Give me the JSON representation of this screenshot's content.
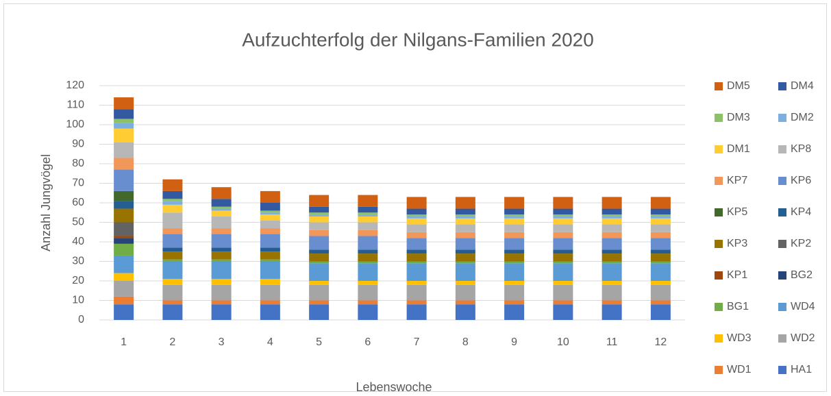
{
  "chart_data": {
    "type": "stacked_bar",
    "title": "Aufzuchterfolg der Nilgans-Familien 2020",
    "x_label": "Lebenswoche",
    "y_label": "Anzahl Jungvögel",
    "categories": [
      "1",
      "2",
      "3",
      "4",
      "5",
      "6",
      "7",
      "8",
      "9",
      "10",
      "11",
      "12"
    ],
    "ylim": [
      0,
      120
    ],
    "yticks": [
      0,
      10,
      20,
      30,
      40,
      50,
      60,
      70,
      80,
      90,
      100,
      110,
      120
    ],
    "grid": true,
    "legend": "right",
    "series": [
      {
        "name": "HA1",
        "color": "#4472C4",
        "values": [
          8,
          8,
          8,
          8,
          8,
          8,
          8,
          8,
          8,
          8,
          8,
          8
        ]
      },
      {
        "name": "WD1",
        "color": "#ED7D31",
        "values": [
          4,
          2,
          2,
          2,
          2,
          2,
          2,
          2,
          2,
          2,
          2,
          2
        ]
      },
      {
        "name": "WD2",
        "color": "#A5A5A5",
        "values": [
          8,
          8,
          8,
          8,
          8,
          8,
          8,
          8,
          8,
          8,
          8,
          8
        ]
      },
      {
        "name": "WD3",
        "color": "#FFC000",
        "values": [
          4,
          3,
          3,
          3,
          2,
          2,
          2,
          2,
          2,
          2,
          2,
          2
        ]
      },
      {
        "name": "WD4",
        "color": "#5B9BD5",
        "values": [
          9,
          9,
          9,
          9,
          9,
          9,
          9,
          9,
          9,
          9,
          9,
          9
        ]
      },
      {
        "name": "BG1",
        "color": "#70AD47",
        "values": [
          6,
          1,
          1,
          1,
          1,
          1,
          1,
          1,
          1,
          1,
          1,
          1
        ]
      },
      {
        "name": "BG2",
        "color": "#264478",
        "values": [
          3,
          0,
          0,
          0,
          0,
          0,
          0,
          0,
          0,
          0,
          0,
          0
        ]
      },
      {
        "name": "KP1",
        "color": "#9E480E",
        "values": [
          1,
          0,
          0,
          0,
          0,
          0,
          0,
          0,
          0,
          0,
          0,
          0
        ]
      },
      {
        "name": "KP2",
        "color": "#636363",
        "values": [
          7,
          0,
          0,
          0,
          0,
          0,
          0,
          0,
          0,
          0,
          0,
          0
        ]
      },
      {
        "name": "KP3",
        "color": "#997300",
        "values": [
          7,
          4,
          4,
          4,
          4,
          4,
          4,
          4,
          4,
          4,
          4,
          4
        ]
      },
      {
        "name": "KP4",
        "color": "#255E91",
        "values": [
          4,
          2,
          2,
          2,
          2,
          2,
          2,
          2,
          2,
          2,
          2,
          2
        ]
      },
      {
        "name": "KP5",
        "color": "#43682B",
        "values": [
          5,
          0,
          0,
          0,
          0,
          0,
          0,
          0,
          0,
          0,
          0,
          0
        ]
      },
      {
        "name": "KP6",
        "color": "#698ED0",
        "values": [
          11,
          7,
          7,
          7,
          7,
          7,
          6,
          6,
          6,
          6,
          6,
          6
        ]
      },
      {
        "name": "KP7",
        "color": "#F1975A",
        "values": [
          6,
          3,
          3,
          3,
          3,
          3,
          3,
          3,
          3,
          3,
          3,
          3
        ]
      },
      {
        "name": "KP8",
        "color": "#B7B7B7",
        "values": [
          8,
          8,
          6,
          4,
          4,
          4,
          4,
          4,
          4,
          4,
          4,
          4
        ]
      },
      {
        "name": "DM1",
        "color": "#FFCD33",
        "values": [
          7,
          4,
          3,
          3,
          3,
          3,
          3,
          3,
          3,
          3,
          3,
          3
        ]
      },
      {
        "name": "DM2",
        "color": "#7CAFDD",
        "values": [
          3,
          2,
          1,
          1,
          1,
          1,
          1,
          1,
          1,
          1,
          1,
          1
        ]
      },
      {
        "name": "DM3",
        "color": "#8CC168",
        "values": [
          2,
          1,
          1,
          1,
          1,
          1,
          1,
          1,
          1,
          1,
          1,
          1
        ]
      },
      {
        "name": "DM4",
        "color": "#335AA1",
        "values": [
          5,
          4,
          4,
          4,
          3,
          3,
          3,
          3,
          3,
          3,
          3,
          3
        ]
      },
      {
        "name": "DM5",
        "color": "#D26012",
        "values": [
          6,
          6,
          6,
          6,
          6,
          6,
          6,
          6,
          6,
          6,
          6,
          6
        ]
      }
    ]
  }
}
